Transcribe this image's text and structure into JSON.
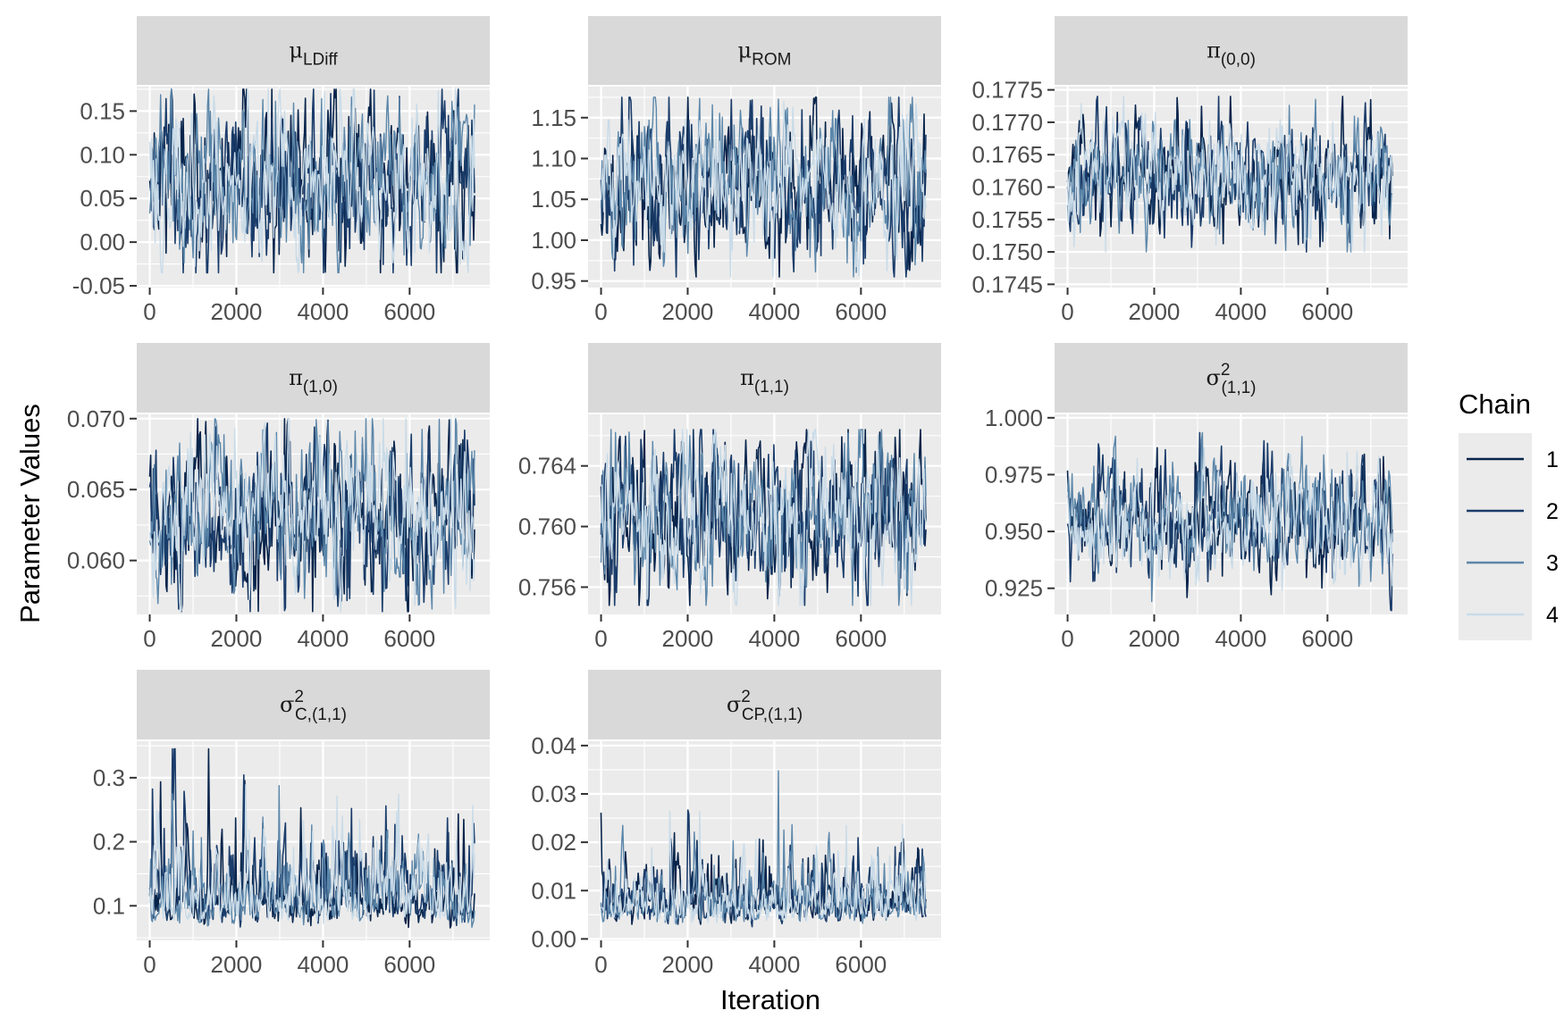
{
  "chart_data": {
    "type": "line",
    "xlabel": "Iteration",
    "ylabel": "Parameter Values",
    "legend": {
      "title": "Chain",
      "position": "right",
      "entries": [
        "1",
        "2",
        "3",
        "4"
      ]
    },
    "series_colors": {
      "1": "#08244b",
      "2": "#1a3c6a",
      "3": "#5b86a9",
      "4": "#c9dbe8"
    },
    "iterations": 7500,
    "panels": [
      {
        "id": "mu_ldiff",
        "label_main": "μ",
        "label_sub": "LDiff",
        "label_sup": "",
        "xlim": [
          -300,
          7850
        ],
        "ylim": [
          -0.052,
          0.178
        ],
        "xticks": [
          0,
          2000,
          4000,
          6000
        ],
        "xtick_labels": [
          "0",
          "2000",
          "4000",
          "6000"
        ],
        "yticks": [
          -0.05,
          0.0,
          0.05,
          0.1,
          0.15
        ],
        "ytick_labels": [
          "-0.05",
          "0.00",
          "0.05",
          "0.10",
          "0.15"
        ],
        "center": 0.07,
        "spread": 0.045,
        "max_dev": 0.105
      },
      {
        "id": "mu_rom",
        "label_main": "μ",
        "label_sub": "ROM",
        "label_sup": "",
        "xlim": [
          -300,
          7850
        ],
        "ylim": [
          0.942,
          1.188
        ],
        "xticks": [
          0,
          2000,
          4000,
          6000
        ],
        "xtick_labels": [
          "0",
          "2000",
          "4000",
          "6000"
        ],
        "yticks": [
          0.95,
          1.0,
          1.05,
          1.1,
          1.15
        ],
        "ytick_labels": [
          "0.95",
          "1.00",
          "1.05",
          "1.10",
          "1.15"
        ],
        "center": 1.065,
        "spread": 0.047,
        "max_dev": 0.11
      },
      {
        "id": "pi_00",
        "label_main": "π",
        "label_sub": "(0,0)",
        "label_sup": "",
        "xlim": [
          -300,
          7850
        ],
        "ylim": [
          0.17445,
          0.17755
        ],
        "xticks": [
          0,
          2000,
          4000,
          6000
        ],
        "xtick_labels": [
          "0",
          "2000",
          "4000",
          "6000"
        ],
        "yticks": [
          0.1745,
          0.175,
          0.1755,
          0.176,
          0.1765,
          0.177,
          0.1775
        ],
        "ytick_labels": [
          "0.1745",
          "0.1750",
          "0.1755",
          "0.1760",
          "0.1765",
          "0.1770",
          "0.1775"
        ],
        "center": 0.1762,
        "spread": 0.00046,
        "max_dev": 0.0012
      },
      {
        "id": "pi_10",
        "label_main": "π",
        "label_sub": "(1,0)",
        "label_sup": "",
        "xlim": [
          -300,
          7850
        ],
        "ylim": [
          0.0562,
          0.0703
        ],
        "xticks": [
          0,
          2000,
          4000,
          6000
        ],
        "xtick_labels": [
          "0",
          "2000",
          "4000",
          "6000"
        ],
        "yticks": [
          0.06,
          0.065,
          0.07
        ],
        "ytick_labels": [
          "0.060",
          "0.065",
          "0.070"
        ],
        "center": 0.0632,
        "spread": 0.0028,
        "max_dev": 0.0068
      },
      {
        "id": "pi_11",
        "label_main": "π",
        "label_sub": "(1,1)",
        "label_sup": "",
        "xlim": [
          -300,
          7850
        ],
        "ylim": [
          0.7542,
          0.7674
        ],
        "xticks": [
          0,
          2000,
          4000,
          6000
        ],
        "xtick_labels": [
          "0",
          "2000",
          "4000",
          "6000"
        ],
        "yticks": [
          0.756,
          0.76,
          0.764
        ],
        "ytick_labels": [
          "0.756",
          "0.760",
          "0.764"
        ],
        "center": 0.7606,
        "spread": 0.0026,
        "max_dev": 0.0058
      },
      {
        "id": "sigma2_11",
        "label_main": "σ",
        "label_sub": "(1,1)",
        "label_sup": "2",
        "xlim": [
          -300,
          7850
        ],
        "ylim": [
          0.9135,
          1.0015
        ],
        "xticks": [
          0,
          2000,
          4000,
          6000
        ],
        "xtick_labels": [
          "0",
          "2000",
          "4000",
          "6000"
        ],
        "yticks": [
          0.925,
          0.95,
          0.975,
          1.0
        ],
        "ytick_labels": [
          "0.925",
          "0.950",
          "0.975",
          "1.000"
        ],
        "center": 0.9535,
        "spread": 0.0125,
        "max_dev": 0.04
      },
      {
        "id": "sigma2_c11",
        "label_main": "σ",
        "label_sub": "C,(1,1)",
        "label_sup": "2",
        "xlim": [
          -300,
          7850
        ],
        "ylim": [
          0.046,
          0.357
        ],
        "xticks": [
          0,
          2000,
          4000,
          6000
        ],
        "xtick_labels": [
          "0",
          "2000",
          "4000",
          "6000"
        ],
        "yticks": [
          0.1,
          0.2,
          0.3
        ],
        "ytick_labels": [
          "0.1",
          "0.2",
          "0.3"
        ],
        "floor": 0.056,
        "skew_scale": 0.058,
        "max_value": 0.345
      },
      {
        "id": "sigma2_cp11",
        "label_main": "σ",
        "label_sub": "CP,(1,1)",
        "label_sup": "2",
        "xlim": [
          -300,
          7850
        ],
        "ylim": [
          -0.0003,
          0.0409
        ],
        "xticks": [
          0,
          2000,
          4000,
          6000
        ],
        "xtick_labels": [
          "0",
          "2000",
          "4000",
          "6000"
        ],
        "yticks": [
          0.0,
          0.01,
          0.02,
          0.03,
          0.04
        ],
        "ytick_labels": [
          "0.00",
          "0.01",
          "0.02",
          "0.03",
          "0.04"
        ],
        "floor": 0.0017,
        "skew_scale": 0.0062,
        "max_value": 0.039
      }
    ]
  }
}
